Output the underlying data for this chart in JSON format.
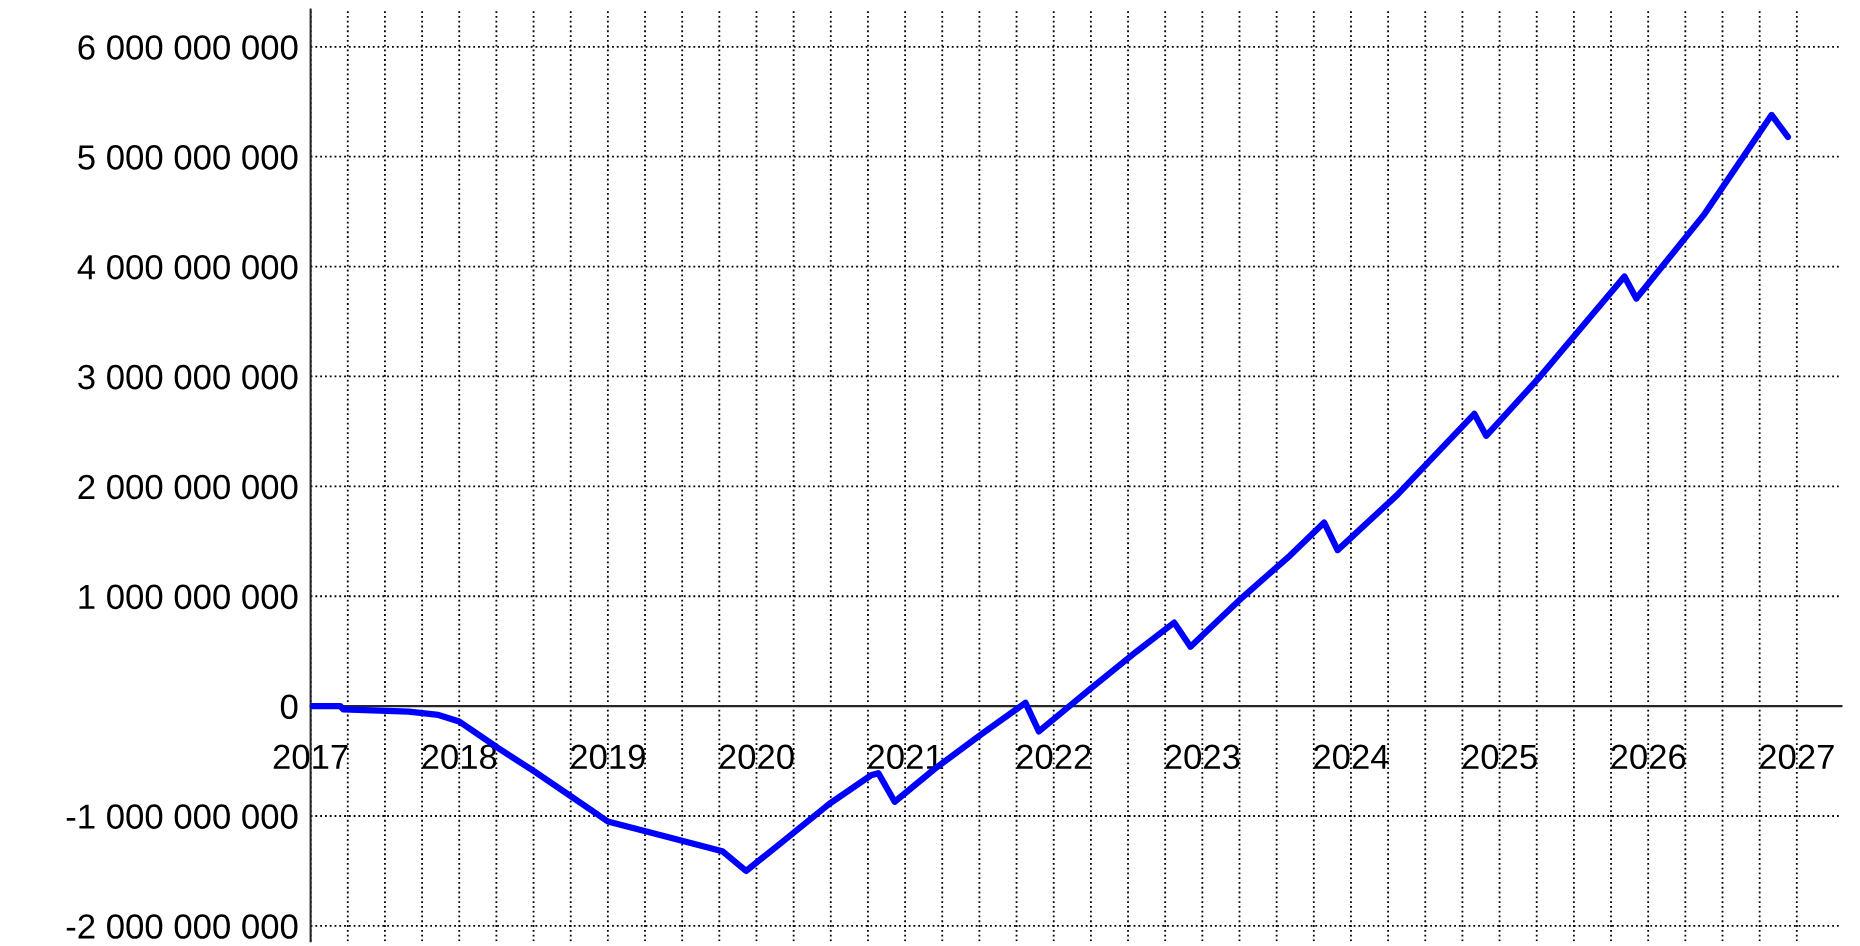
{
  "chart_data": {
    "type": "line",
    "x": [
      2017.0,
      2017.2,
      2017.22,
      2017.66,
      2017.86,
      2018.0,
      2018.26,
      2018.5,
      2018.74,
      2019.0,
      2019.37,
      2019.77,
      2019.93,
      2020.17,
      2020.49,
      2020.77,
      2020.82,
      2020.93,
      2021.2,
      2021.52,
      2021.81,
      2021.9,
      2022.24,
      2022.56,
      2022.81,
      2022.92,
      2023.27,
      2023.59,
      2023.82,
      2023.91,
      2024.31,
      2024.83,
      2024.91,
      2025.26,
      2025.84,
      2025.92,
      2026.38,
      2026.83,
      2026.94
    ],
    "series": [
      {
        "color": "#0000ff",
        "values": [
          0,
          0,
          -30000000,
          -50000000,
          -80000000,
          -140000000,
          -380000000,
          -590000000,
          -810000000,
          -1050000000,
          -1180000000,
          -1320000000,
          -1500000000,
          -1240000000,
          -890000000,
          -630000000,
          -610000000,
          -870000000,
          -570000000,
          -250000000,
          30000000,
          -230000000,
          150000000,
          500000000,
          760000000,
          540000000,
          990000000,
          1370000000,
          1670000000,
          1420000000,
          1920000000,
          2660000000,
          2460000000,
          2980000000,
          3910000000,
          3710000000,
          4480000000,
          5380000000,
          5180000000
        ]
      }
    ],
    "xlim": [
      2017,
      2027.3
    ],
    "xticks": [
      2017,
      {
        "value": 2017.25,
        "label": null
      },
      {
        "value": 2017.5,
        "label": null
      },
      {
        "value": 2017.75,
        "label": null
      },
      2018,
      {
        "value": 2018.25,
        "label": null
      },
      {
        "value": 2018.5,
        "label": null
      },
      {
        "value": 2018.75,
        "label": null
      },
      2019,
      {
        "value": 2019.25,
        "label": null
      },
      {
        "value": 2019.5,
        "label": null
      },
      {
        "value": 2019.75,
        "label": null
      },
      2020,
      {
        "value": 2020.25,
        "label": null
      },
      {
        "value": 2020.5,
        "label": null
      },
      {
        "value": 2020.75,
        "label": null
      },
      2021,
      {
        "value": 2021.25,
        "label": null
      },
      {
        "value": 2021.5,
        "label": null
      },
      {
        "value": 2021.75,
        "label": null
      },
      2022,
      {
        "value": 2022.25,
        "label": null
      },
      {
        "value": 2022.5,
        "label": null
      },
      {
        "value": 2022.75,
        "label": null
      },
      2023,
      {
        "value": 2023.25,
        "label": null
      },
      {
        "value": 2023.5,
        "label": null
      },
      {
        "value": 2023.75,
        "label": null
      },
      2024,
      {
        "value": 2024.25,
        "label": null
      },
      {
        "value": 2024.5,
        "label": null
      },
      {
        "value": 2024.75,
        "label": null
      },
      2025,
      {
        "value": 2025.25,
        "label": null
      },
      {
        "value": 2025.5,
        "label": null
      },
      {
        "value": 2025.75,
        "label": null
      },
      2026,
      {
        "value": 2026.25,
        "label": null
      },
      {
        "value": 2026.5,
        "label": null
      },
      {
        "value": 2026.75,
        "label": null
      },
      2027
    ],
    "ylim": [
      -2140000000,
      6340000000
    ],
    "yticks": [
      {
        "value": -2000000000,
        "label": "-2 000 000 000"
      },
      {
        "value": -1000000000,
        "label": "-1 000 000 000"
      },
      0,
      {
        "value": 1000000000,
        "label": "1 000 000 000"
      },
      {
        "value": 2000000000,
        "label": "2 000 000 000"
      },
      {
        "value": 3000000000,
        "label": "3 000 000 000"
      },
      {
        "value": 4000000000,
        "label": "4 000 000 000"
      },
      {
        "value": 5000000000,
        "label": "5 000 000 000"
      },
      {
        "value": 6000000000,
        "label": "6 000 000 000"
      }
    ],
    "grid": true,
    "marker": "none",
    "line_style": "solid"
  }
}
